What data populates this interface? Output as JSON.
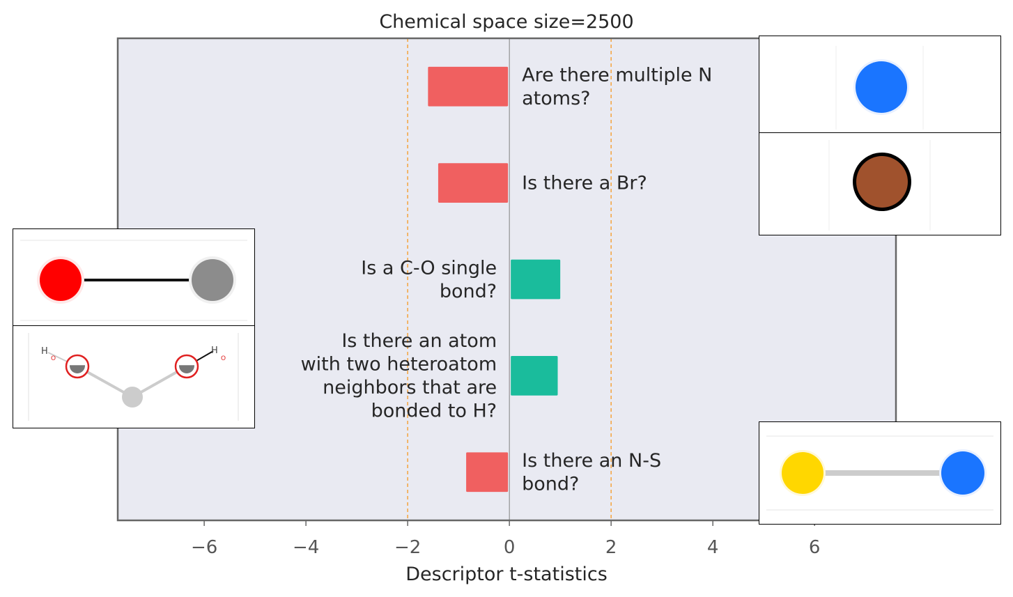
{
  "chart_data": {
    "type": "bar",
    "orientation": "horizontal",
    "title": "Chemical space size=2500",
    "xlabel": "Descriptor t-statistics",
    "xlim": [
      -7.7,
      7.6
    ],
    "xticks": [
      -6,
      -4,
      -2,
      0,
      2,
      4,
      6
    ],
    "xtick_labels": [
      "−6",
      "−4",
      "−2",
      "0",
      "2",
      "4",
      "6"
    ],
    "significance_lines": [
      -2,
      2
    ],
    "grid": false,
    "bars": [
      {
        "label_lines": [
          "Are there multiple N",
          "atoms?"
        ],
        "value": -1.6,
        "color": "#f06060"
      },
      {
        "label_lines": [
          "Is there a Br?"
        ],
        "value": -1.4,
        "color": "#f06060"
      },
      {
        "label_lines": [
          "Is a C-O single",
          "bond?"
        ],
        "value": 1.0,
        "color": "#1abc9c"
      },
      {
        "label_lines": [
          "Is there an atom",
          "with two heteroatom",
          "neighbors that are",
          "bonded to H?"
        ],
        "value": 0.95,
        "color": "#1abc9c"
      },
      {
        "label_lines": [
          "Is there an N-S",
          "bond?"
        ],
        "value": -0.85,
        "color": "#f06060"
      }
    ],
    "colors": {
      "positive": "#1abc9c",
      "negative": "#f06060",
      "axes_bg": "#e9eaf2",
      "threshold_line": "#f5a33c",
      "zero_line": "#808080",
      "spine": "#666666"
    },
    "insets": [
      {
        "name": "nitrogen-atom-inset",
        "atoms": [
          "N"
        ],
        "colors": [
          "#1a75ff"
        ]
      },
      {
        "name": "bromine-atom-inset",
        "atoms": [
          "Br"
        ],
        "colors": [
          "#a0522d"
        ]
      },
      {
        "name": "c-o-bond-inset",
        "atoms": [
          "O",
          "C"
        ],
        "colors": [
          "#ff0000",
          "#8c8c8c"
        ]
      },
      {
        "name": "hetero-neighbor-inset",
        "atoms": [
          "H",
          "O",
          "C",
          "O",
          "H"
        ]
      },
      {
        "name": "n-s-bond-inset",
        "atoms": [
          "S",
          "N"
        ],
        "colors": [
          "#ffd700",
          "#1a75ff"
        ]
      }
    ],
    "inset_texts": {
      "h_left": "H",
      "o_left": "O",
      "h_right": "H",
      "o_right": "O"
    }
  }
}
